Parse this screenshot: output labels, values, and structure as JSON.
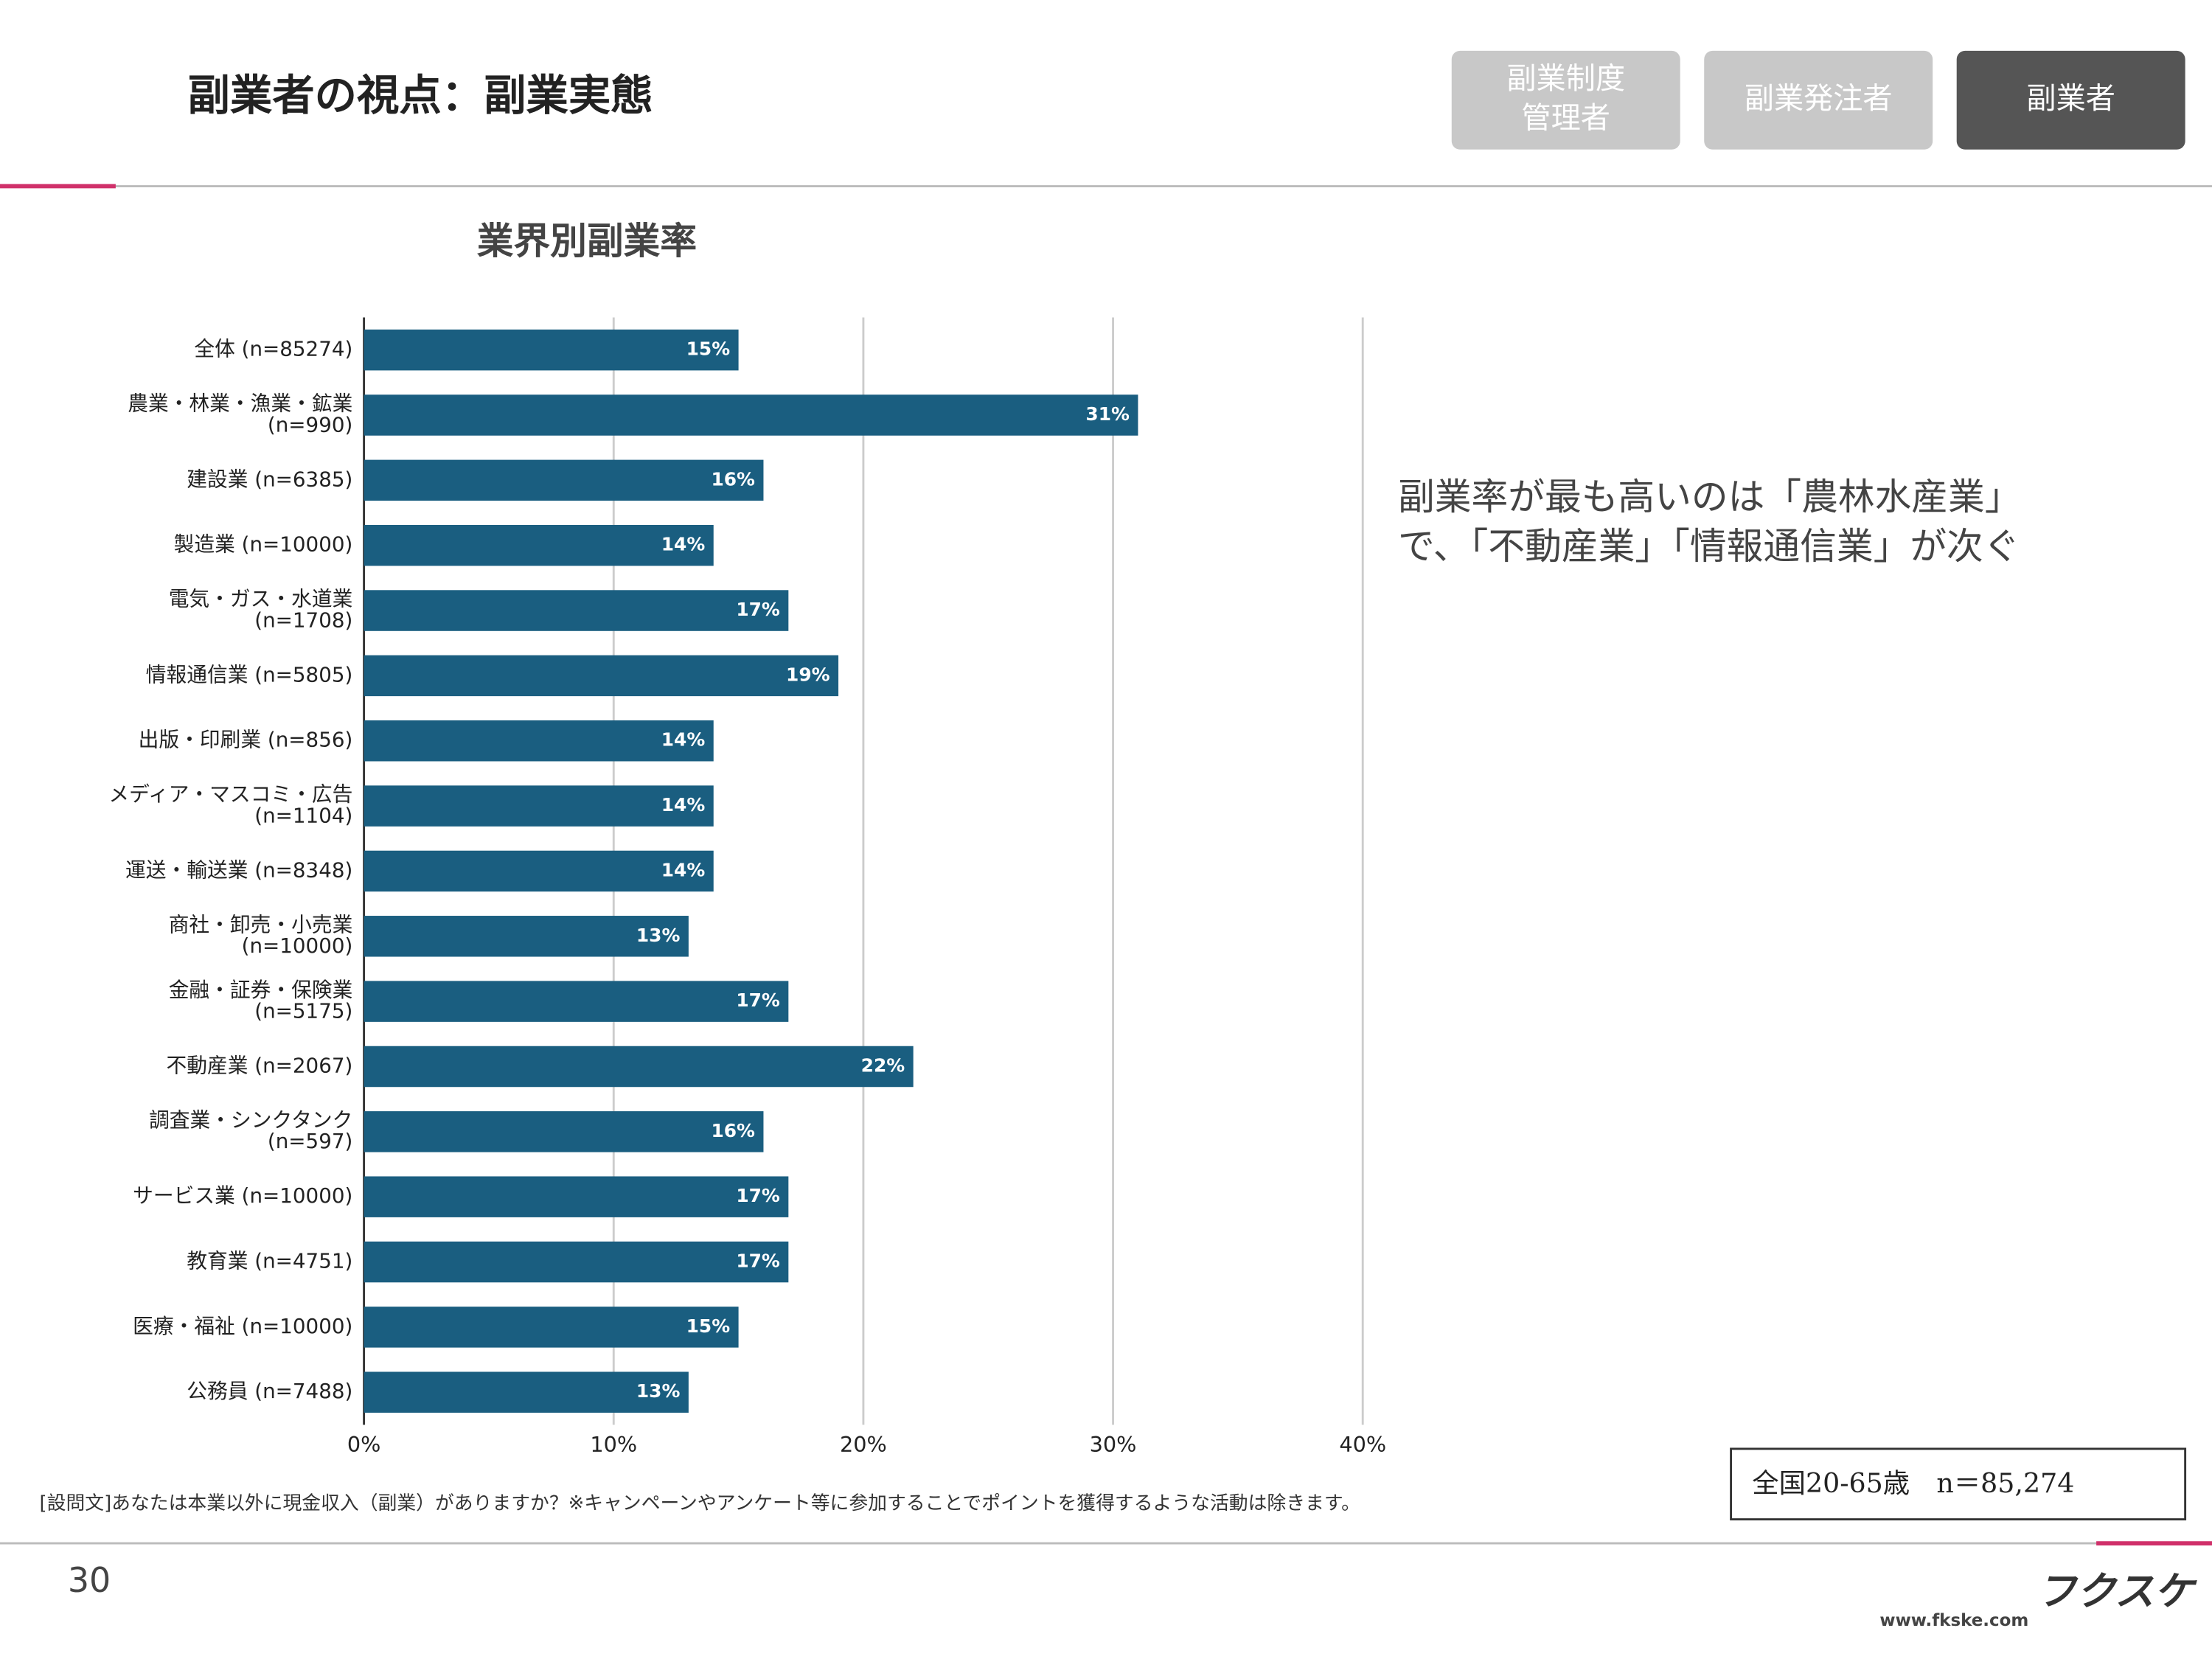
{
  "header": {
    "title": "副業者の視点：副業実態",
    "tabs": [
      "副業制度\n管理者",
      "副業発注者",
      "副業者"
    ]
  },
  "chart_data": {
    "type": "bar",
    "orientation": "horizontal",
    "title": "業界別副業率",
    "categories": [
      "全体 (n=85274)",
      "農業・林業・漁業・鉱業\n(n=990)",
      "建設業 (n=6385)",
      "製造業 (n=10000)",
      "電気・ガス・水道業\n(n=1708)",
      "情報通信業 (n=5805)",
      "出版・印刷業 (n=856)",
      "メディア・マスコミ・広告\n(n=1104)",
      "運送・輸送業 (n=8348)",
      "商社・卸売・小売業\n(n=10000)",
      "金融・証券・保険業\n(n=5175)",
      "不動産業 (n=2067)",
      "調査業・シンクタンク\n(n=597)",
      "サービス業 (n=10000)",
      "教育業 (n=4751)",
      "医療・福祉 (n=10000)",
      "公務員 (n=7488)"
    ],
    "values": [
      15,
      31,
      16,
      14,
      17,
      19,
      14,
      14,
      14,
      13,
      17,
      22,
      16,
      17,
      17,
      15,
      13
    ],
    "value_labels": [
      "15%",
      "31%",
      "16%",
      "14%",
      "17%",
      "19%",
      "14%",
      "14%",
      "14%",
      "13%",
      "17%",
      "22%",
      "16%",
      "17%",
      "17%",
      "15%",
      "13%"
    ],
    "color": "#1a5e80",
    "xlim": [
      0,
      40
    ],
    "xticks": [
      {
        "value": 0,
        "label": "0%"
      },
      {
        "value": 10,
        "label": "10%"
      },
      {
        "value": 20,
        "label": "20%"
      },
      {
        "value": 30,
        "label": "30%"
      },
      {
        "value": 40,
        "label": "40%"
      }
    ],
    "grid": true
  },
  "comment": "副業率が最も高いのは「農林水産業」\nで、「不動産業」「情報通信業」が次ぐ",
  "note": "[設問文]あなたは本業以外に現金収入（副業）がありますか？※キャンペーンやアンケート等に参加することでポイントを獲得するような活動は除きます。",
  "sample": "全国20-65歳　n＝85,274",
  "footer": {
    "page": "30",
    "logo": "フクスケ",
    "url": "www.fkske.com"
  }
}
